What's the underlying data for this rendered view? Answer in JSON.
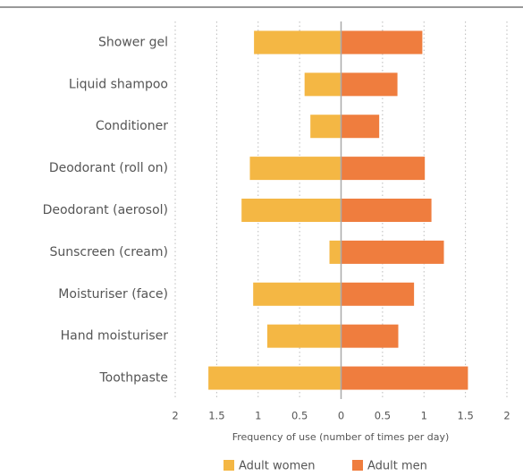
{
  "chart_data": {
    "type": "bar",
    "orientation": "horizontal",
    "xlabel": "Frequency of use (number of times per day)",
    "categories": [
      "Shower gel",
      "Liquid shampoo",
      "Conditioner",
      "Deodorant (roll on)",
      "Deodorant (aerosol)",
      "Sunscreen (cream)",
      "Moisturiser (face)",
      "Hand moisturiser",
      "Toothpaste"
    ],
    "series": [
      {
        "name": "Adult women",
        "color": "#f4b744",
        "values": [
          -1.05,
          -0.44,
          -0.37,
          -1.1,
          -1.2,
          -0.14,
          -1.06,
          -0.89,
          -1.6
        ]
      },
      {
        "name": "Adult men",
        "color": "#ef7d3e",
        "values": [
          0.98,
          0.68,
          0.46,
          1.01,
          1.09,
          1.24,
          0.88,
          0.69,
          1.53
        ]
      }
    ],
    "xlim": [
      -2,
      2
    ],
    "xticks": [
      {
        "value": -2,
        "label": "2"
      },
      {
        "value": -1.5,
        "label": "1.5"
      },
      {
        "value": -1,
        "label": "1"
      },
      {
        "value": -0.5,
        "label": "0.5"
      },
      0,
      0.5,
      1,
      1.5,
      2
    ],
    "grid": true,
    "legend": "bottom"
  }
}
